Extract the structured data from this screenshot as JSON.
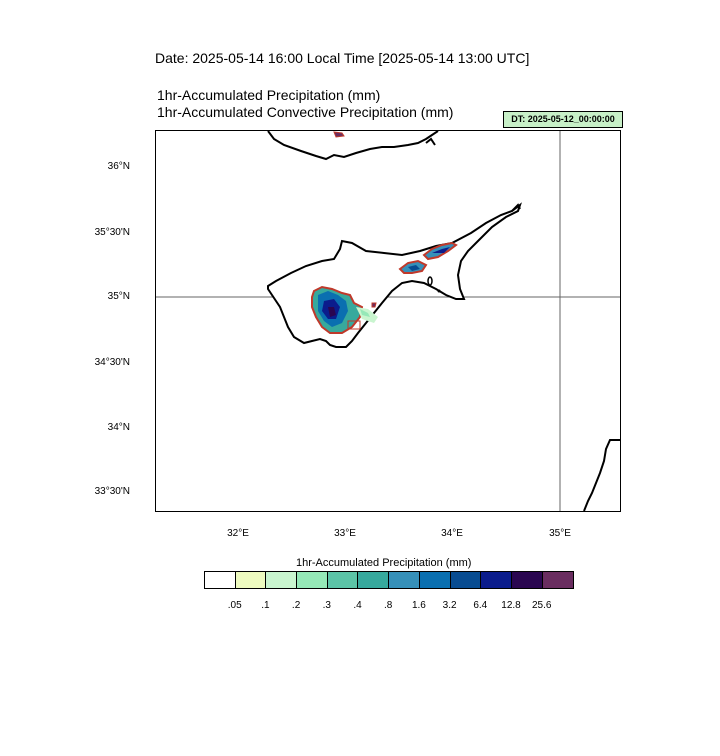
{
  "header": {
    "date_line": "Date: 2025-05-14  16:00 Local Time [2025-05-14  13:00 UTC]",
    "var_line_1": "1hr-Accumulated Precipitation   (mm)",
    "var_line_2": "1hr-Accumulated Convective Precipitation   (mm)",
    "dt_badge": "DT: 2025-05-12_00:00:00"
  },
  "map": {
    "region": "Cyprus",
    "lat_labels": [
      "36°N",
      "35°30'N",
      "35°N",
      "34°30'N",
      "34°N",
      "33°30'N"
    ],
    "lon_labels": [
      "32°E",
      "33°E",
      "34°E",
      "35°E"
    ],
    "reference_lines": [
      "35°N",
      "35°E"
    ]
  },
  "colorbar": {
    "title": "1hr-Accumulated Precipitation  (mm)",
    "labels": [
      ".05",
      ".1",
      ".2",
      ".3",
      ".4",
      ".8",
      "1.6",
      "3.2",
      "6.4",
      "12.8",
      "25.6"
    ],
    "colors": [
      "#ffffff",
      "#eefbc0",
      "#c9f5cf",
      "#95e8b7",
      "#5cc4a7",
      "#37a99d",
      "#3690b9",
      "#0a6fb0",
      "#084c91",
      "#0b1c8c",
      "#2a0650",
      "#6a2d60"
    ]
  }
}
